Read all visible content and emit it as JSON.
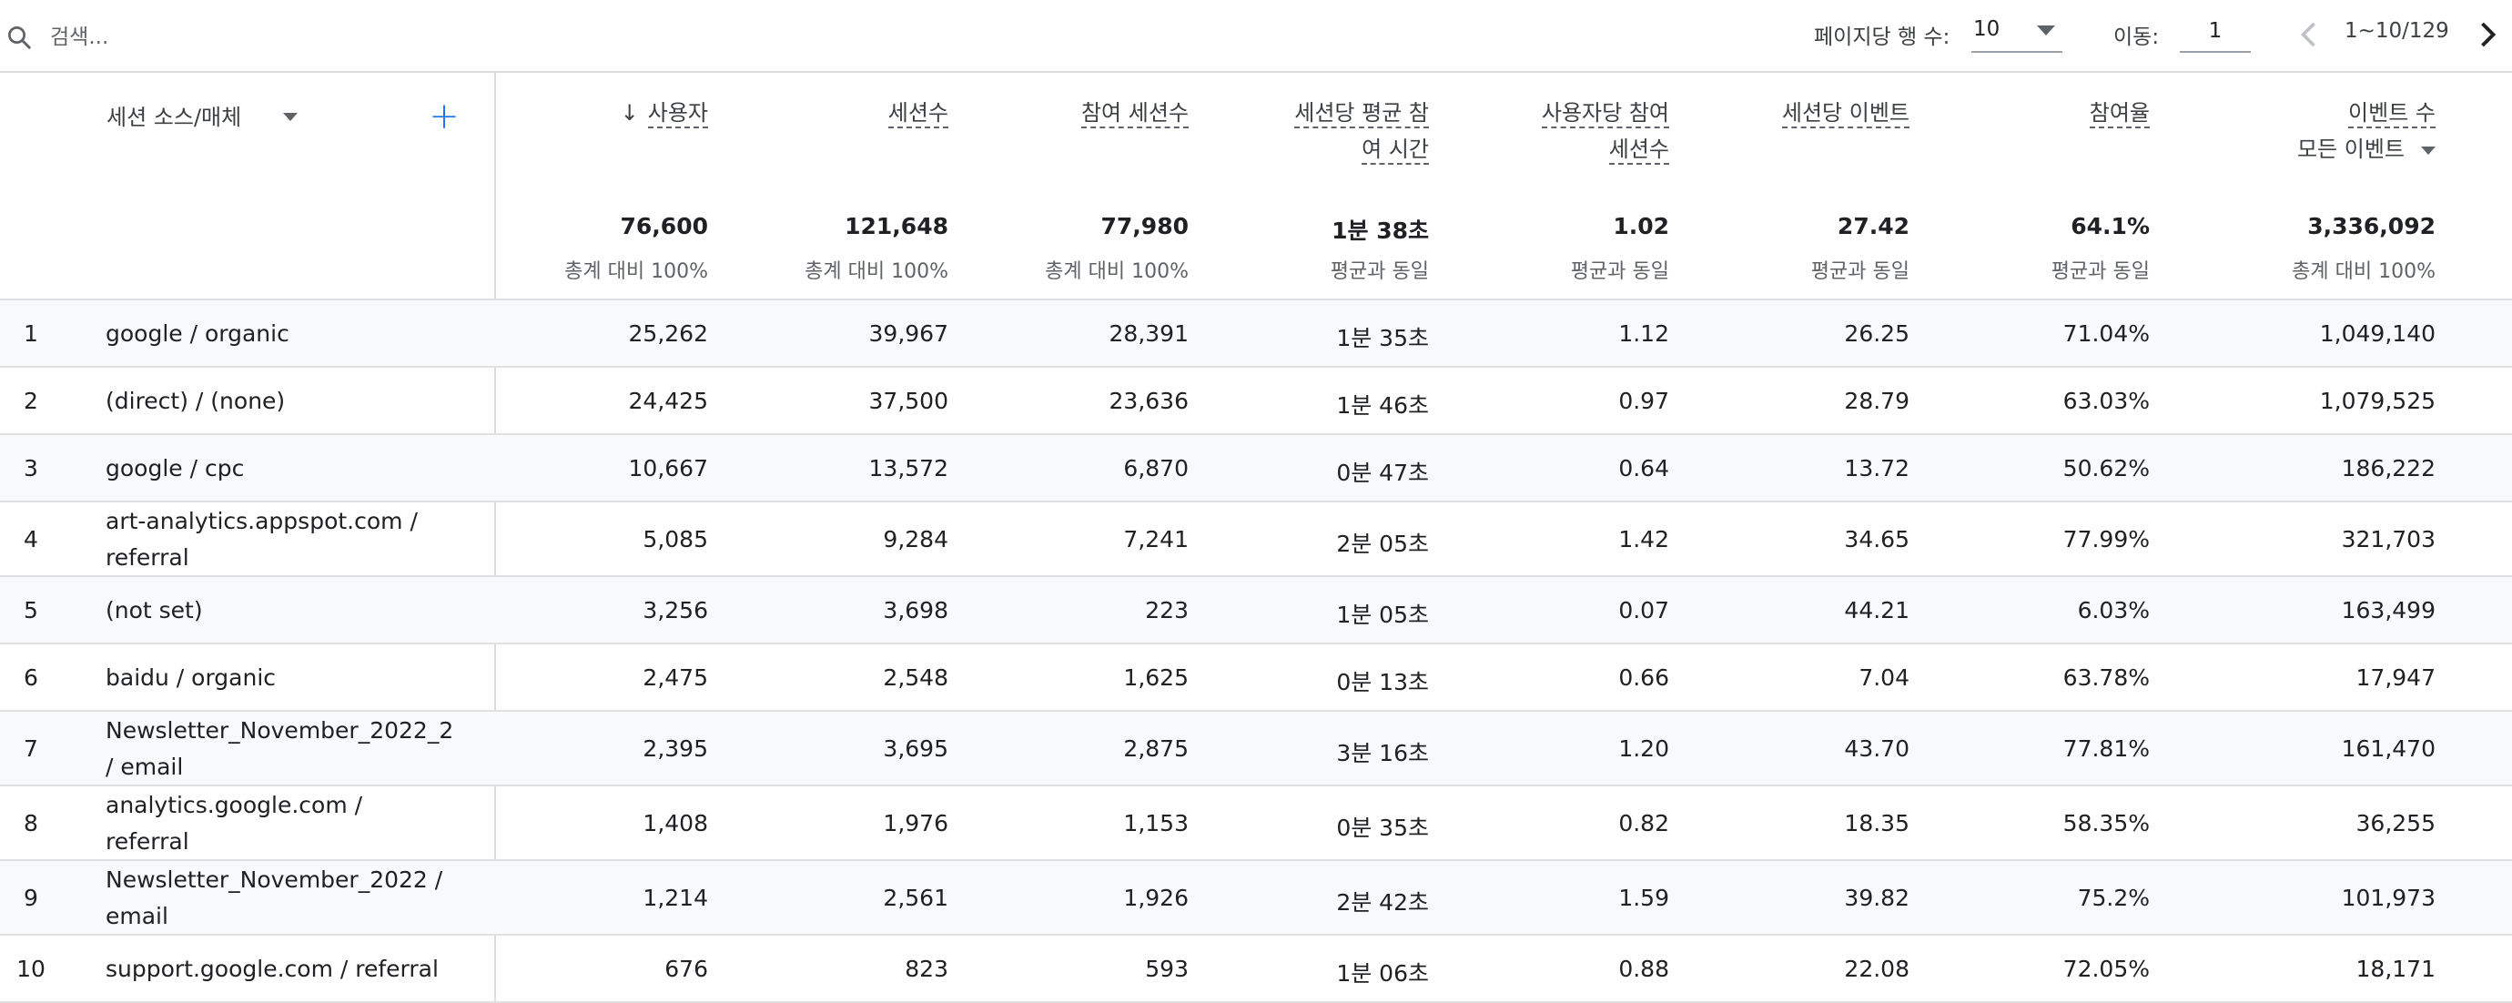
{
  "toolbar": {
    "search_placeholder": "검색...",
    "rows_per_page_label": "페이지당 행 수:",
    "rows_per_page_value": "10",
    "goto_label": "이동:",
    "goto_value": "1",
    "page_range": "1~10/129"
  },
  "table": {
    "dimension_header": "세션 소스/매체",
    "columns": [
      {
        "label": "사용자",
        "sorted": "desc",
        "total": "76,600",
        "total_sub": "총계 대비 100%"
      },
      {
        "label": "세션수",
        "total": "121,648",
        "total_sub": "총계 대비 100%"
      },
      {
        "label": "참여 세션수",
        "total": "77,980",
        "total_sub": "총계 대비 100%"
      },
      {
        "label": "세션당 평균 참",
        "label2": "여 시간",
        "total": "1분 38초",
        "total_sub": "평균과 동일"
      },
      {
        "label": "사용자당 참여",
        "label2": "세션수",
        "total": "1.02",
        "total_sub": "평균과 동일"
      },
      {
        "label": "세션당 이벤트",
        "total": "27.42",
        "total_sub": "평균과 동일"
      },
      {
        "label": "참여율",
        "total": "64.1%",
        "total_sub": "평균과 동일"
      },
      {
        "label": "이벤트 수",
        "sub_select": "모든 이벤트",
        "total": "3,336,092",
        "total_sub": "총계 대비 100%"
      }
    ],
    "rows": [
      {
        "num": "1",
        "dim": "google / organic",
        "values": [
          "25,262",
          "39,967",
          "28,391",
          "1분 35초",
          "1.12",
          "26.25",
          "71.04%",
          "1,049,140"
        ]
      },
      {
        "num": "2",
        "dim": "(direct) / (none)",
        "values": [
          "24,425",
          "37,500",
          "23,636",
          "1분 46초",
          "0.97",
          "28.79",
          "63.03%",
          "1,079,525"
        ]
      },
      {
        "num": "3",
        "dim": "google / cpc",
        "values": [
          "10,667",
          "13,572",
          "6,870",
          "0분 47초",
          "0.64",
          "13.72",
          "50.62%",
          "186,222"
        ]
      },
      {
        "num": "4",
        "dim": "art-analytics.appspot.com /",
        "dim2": "referral",
        "values": [
          "5,085",
          "9,284",
          "7,241",
          "2분 05초",
          "1.42",
          "34.65",
          "77.99%",
          "321,703"
        ]
      },
      {
        "num": "5",
        "dim": "(not set)",
        "values": [
          "3,256",
          "3,698",
          "223",
          "1분 05초",
          "0.07",
          "44.21",
          "6.03%",
          "163,499"
        ]
      },
      {
        "num": "6",
        "dim": "baidu / organic",
        "values": [
          "2,475",
          "2,548",
          "1,625",
          "0분 13초",
          "0.66",
          "7.04",
          "63.78%",
          "17,947"
        ]
      },
      {
        "num": "7",
        "dim": "Newsletter_November_2022_2",
        "dim2": "/ email",
        "values": [
          "2,395",
          "3,695",
          "2,875",
          "3분 16초",
          "1.20",
          "43.70",
          "77.81%",
          "161,470"
        ]
      },
      {
        "num": "8",
        "dim": "analytics.google.com /",
        "dim2": "referral",
        "values": [
          "1,408",
          "1,976",
          "1,153",
          "0분 35초",
          "0.82",
          "18.35",
          "58.35%",
          "36,255"
        ]
      },
      {
        "num": "9",
        "dim": "Newsletter_November_2022 /",
        "dim2": "email",
        "values": [
          "1,214",
          "2,561",
          "1,926",
          "2분 42초",
          "1.59",
          "39.82",
          "75.2%",
          "101,973"
        ]
      },
      {
        "num": "10",
        "dim": "support.google.com / referral",
        "values": [
          "676",
          "823",
          "593",
          "1분 06초",
          "0.88",
          "22.08",
          "72.05%",
          "18,171"
        ]
      }
    ]
  },
  "icons": {
    "search": "search-icon",
    "sort": "arrow-down-icon",
    "add": "plus-icon",
    "prev": "chevron-left-icon",
    "next": "chevron-right-icon"
  },
  "colors": {
    "accent": "#1a73e8",
    "row_alt": "#f8f9fa",
    "divider": "#dadce0"
  }
}
